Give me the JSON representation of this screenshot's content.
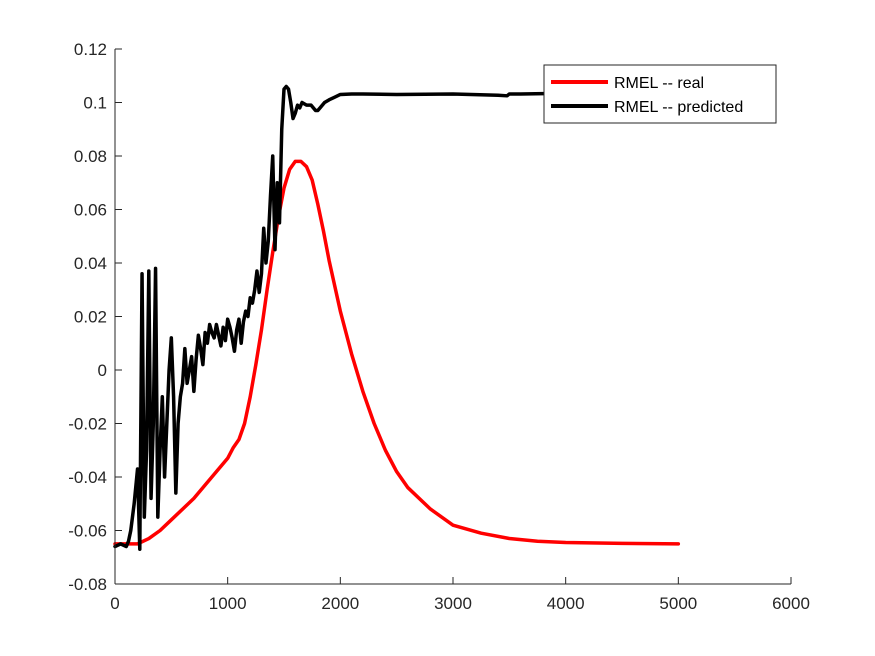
{
  "chart_data": {
    "type": "line",
    "title": "",
    "xlabel": "",
    "ylabel": "",
    "xlim": [
      0,
      6000
    ],
    "ylim": [
      -0.08,
      0.12
    ],
    "xticks": [
      0,
      1000,
      2000,
      3000,
      4000,
      5000,
      6000
    ],
    "yticks": [
      -0.08,
      -0.06,
      -0.04,
      -0.02,
      0,
      0.02,
      0.04,
      0.06,
      0.08,
      0.1,
      0.12
    ],
    "xtick_labels": [
      "0",
      "1000",
      "2000",
      "3000",
      "4000",
      "5000",
      "6000"
    ],
    "ytick_labels": [
      "-0.08",
      "-0.06",
      "-0.04",
      "-0.02",
      "0",
      "0.02",
      "0.04",
      "0.06",
      "0.08",
      "0.1",
      "0.12"
    ],
    "grid": false,
    "legend_position": "top-right",
    "series": [
      {
        "name": "RMEL -- real",
        "color": "#ff0000",
        "x": [
          0,
          200,
          300,
          400,
          500,
          600,
          700,
          800,
          900,
          1000,
          1050,
          1100,
          1150,
          1200,
          1250,
          1300,
          1350,
          1400,
          1450,
          1500,
          1550,
          1600,
          1650,
          1700,
          1750,
          1800,
          1850,
          1900,
          2000,
          2100,
          2200,
          2300,
          2400,
          2500,
          2600,
          2800,
          3000,
          3250,
          3500,
          3750,
          4000,
          4500,
          5000
        ],
        "y": [
          -0.065,
          -0.065,
          -0.063,
          -0.06,
          -0.056,
          -0.052,
          -0.048,
          -0.043,
          -0.038,
          -0.033,
          -0.029,
          -0.026,
          -0.02,
          -0.01,
          0.002,
          0.015,
          0.03,
          0.044,
          0.057,
          0.068,
          0.075,
          0.078,
          0.078,
          0.076,
          0.071,
          0.062,
          0.052,
          0.041,
          0.022,
          0.006,
          -0.008,
          -0.02,
          -0.03,
          -0.038,
          -0.044,
          -0.052,
          -0.058,
          -0.061,
          -0.063,
          -0.064,
          -0.0645,
          -0.0648,
          -0.065
        ]
      },
      {
        "name": "RMEL -- predicted",
        "color": "#000000",
        "x": [
          0,
          50,
          100,
          120,
          140,
          170,
          200,
          220,
          240,
          260,
          280,
          300,
          320,
          340,
          360,
          380,
          400,
          420,
          440,
          460,
          480,
          500,
          520,
          540,
          560,
          580,
          600,
          620,
          640,
          660,
          680,
          700,
          720,
          740,
          760,
          780,
          800,
          820,
          840,
          860,
          880,
          900,
          920,
          940,
          960,
          980,
          1000,
          1020,
          1040,
          1060,
          1080,
          1100,
          1120,
          1140,
          1160,
          1180,
          1200,
          1220,
          1240,
          1260,
          1280,
          1300,
          1320,
          1340,
          1360,
          1380,
          1400,
          1420,
          1440,
          1460,
          1480,
          1500,
          1520,
          1540,
          1560,
          1580,
          1600,
          1620,
          1640,
          1660,
          1700,
          1740,
          1780,
          1800,
          1820,
          1860,
          1900,
          1950,
          2000,
          2100,
          2200,
          2500,
          3000,
          3400,
          3480,
          3500,
          3600,
          3800,
          4000,
          4200,
          4400,
          4500
        ],
        "y": [
          -0.066,
          -0.065,
          -0.066,
          -0.064,
          -0.06,
          -0.05,
          -0.037,
          -0.067,
          0.036,
          -0.055,
          -0.03,
          0.037,
          -0.048,
          -0.02,
          0.038,
          -0.055,
          -0.03,
          -0.01,
          -0.04,
          -0.02,
          0.0,
          0.012,
          -0.01,
          -0.046,
          -0.02,
          -0.01,
          -0.005,
          0.008,
          -0.005,
          0.0,
          0.005,
          -0.008,
          0.004,
          0.013,
          0.008,
          0.002,
          0.014,
          0.01,
          0.017,
          0.014,
          0.012,
          0.017,
          0.013,
          0.009,
          0.016,
          0.011,
          0.019,
          0.016,
          0.012,
          0.007,
          0.015,
          0.019,
          0.01,
          0.018,
          0.022,
          0.02,
          0.027,
          0.025,
          0.03,
          0.037,
          0.029,
          0.036,
          0.053,
          0.04,
          0.048,
          0.065,
          0.08,
          0.045,
          0.07,
          0.055,
          0.09,
          0.105,
          0.106,
          0.105,
          0.1,
          0.094,
          0.096,
          0.099,
          0.098,
          0.1,
          0.099,
          0.099,
          0.097,
          0.097,
          0.098,
          0.1,
          0.101,
          0.102,
          0.103,
          0.1032,
          0.1032,
          0.103,
          0.1032,
          0.1027,
          0.1025,
          0.1032,
          0.1032,
          0.1033,
          0.1034,
          0.1033,
          0.1033,
          0.1032
        ]
      }
    ]
  }
}
